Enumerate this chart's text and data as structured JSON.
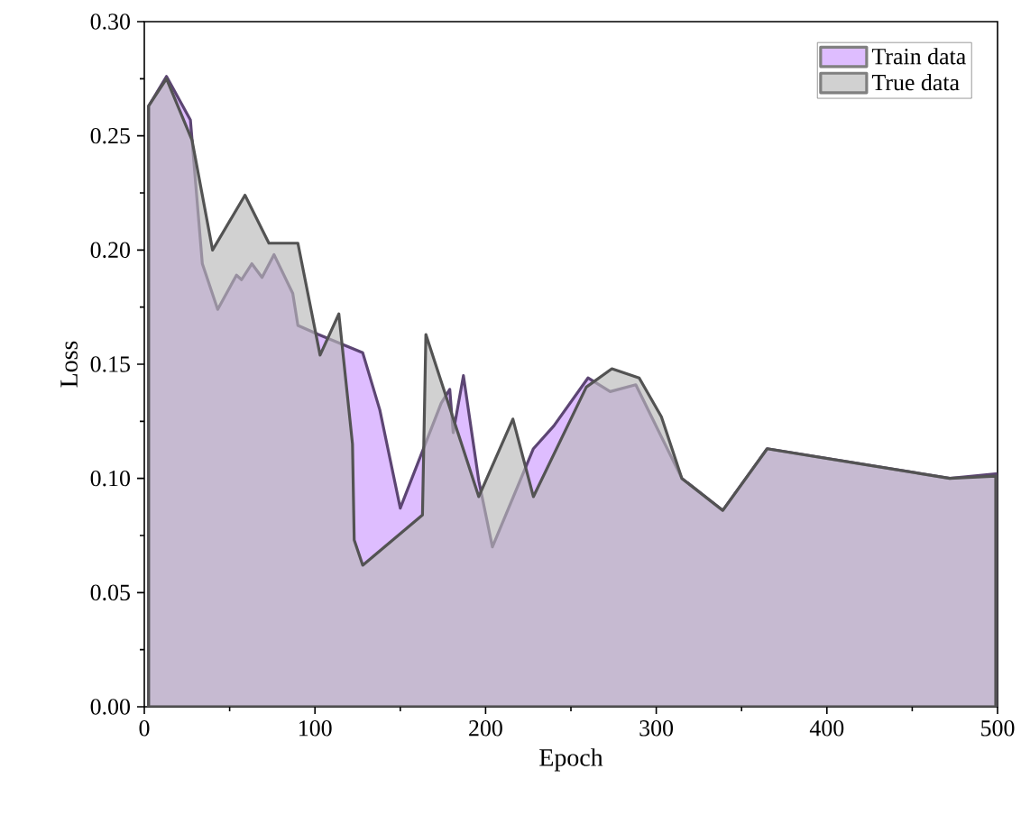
{
  "chart_data": {
    "type": "area",
    "xlabel": "Epoch",
    "ylabel": "Loss",
    "xlim": [
      0,
      500
    ],
    "ylim": [
      0,
      0.3
    ],
    "xticks": [
      0,
      100,
      200,
      300,
      400,
      500
    ],
    "yticks": [
      {
        "value": 0,
        "label": "0.00"
      },
      {
        "value": 0.05,
        "label": "0.05"
      },
      {
        "value": 0.1,
        "label": "0.10"
      },
      {
        "value": 0.15,
        "label": "0.15"
      },
      {
        "value": 0.2,
        "label": "0.20"
      },
      {
        "value": 0.25,
        "label": "0.25"
      },
      {
        "value": 0.3,
        "label": "0.30"
      }
    ],
    "legend": "top right",
    "grid": false,
    "series": [
      {
        "name": "Train data",
        "color": "#cc99ff",
        "x": [
          2.5,
          13,
          27,
          34,
          43,
          54,
          57,
          63,
          69,
          76,
          87,
          90,
          102,
          128,
          138,
          150,
          174,
          179,
          181,
          187,
          196,
          204,
          228,
          240,
          260,
          273,
          288,
          315,
          339,
          365,
          472,
          499
        ],
        "values": [
          0.263,
          0.276,
          0.257,
          0.194,
          0.174,
          0.189,
          0.187,
          0.194,
          0.188,
          0.198,
          0.181,
          0.167,
          0.163,
          0.155,
          0.13,
          0.087,
          0.133,
          0.139,
          0.12,
          0.145,
          0.099,
          0.07,
          0.113,
          0.123,
          0.144,
          0.138,
          0.141,
          0.1,
          0.086,
          0.113,
          0.1,
          0.102
        ]
      },
      {
        "name": "True data",
        "color": "#b8b8b8",
        "x": [
          2.5,
          13,
          28,
          40,
          59,
          73,
          90,
          103,
          114,
          122,
          123,
          128,
          163,
          165,
          196,
          216,
          228,
          259,
          274,
          290,
          303,
          315,
          339,
          365,
          472,
          499
        ],
        "values": [
          0.263,
          0.275,
          0.248,
          0.2,
          0.224,
          0.203,
          0.203,
          0.154,
          0.172,
          0.115,
          0.073,
          0.062,
          0.084,
          0.163,
          0.092,
          0.126,
          0.092,
          0.14,
          0.148,
          0.144,
          0.127,
          0.1,
          0.086,
          0.113,
          0.1,
          0.101
        ]
      }
    ]
  }
}
